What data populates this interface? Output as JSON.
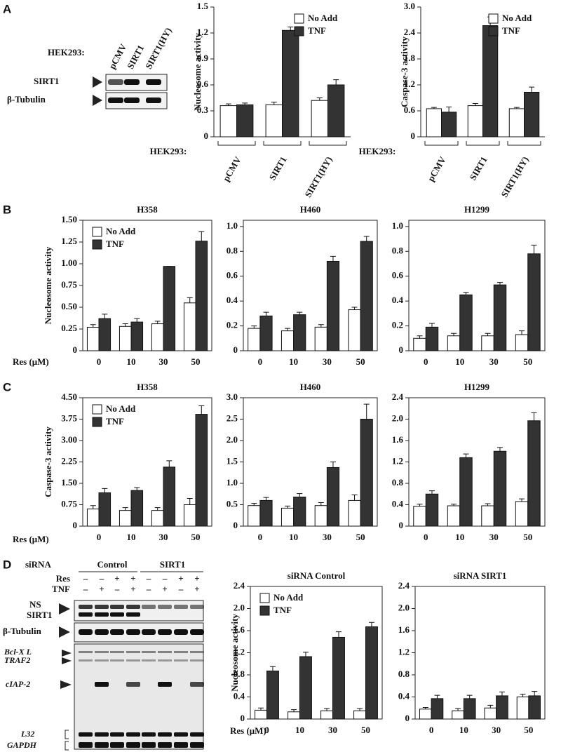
{
  "panel_labels": [
    "A",
    "B",
    "C",
    "D"
  ],
  "blot_a": {
    "cell_line": "HEK293:",
    "lanes": [
      "pCMV",
      "SIRT1",
      "SIRT1(HY)"
    ],
    "rows": [
      "SIRT1",
      "β-Tubulin"
    ]
  },
  "blot_d": {
    "sirna_label": "siRNA",
    "groups": [
      "Control",
      "SIRT1"
    ],
    "treatments": [
      {
        "name": "Res",
        "signs": [
          "–",
          "–",
          "+",
          "+",
          "–",
          "–",
          "+",
          "+"
        ]
      },
      {
        "name": "TNF",
        "signs": [
          "–",
          "+",
          "–",
          "+",
          "–",
          "+",
          "–",
          "+"
        ]
      }
    ],
    "rows": [
      "NS",
      "SIRT1",
      "β-Tubulin"
    ],
    "rna": [
      "Bcl-X L",
      "TRAF2",
      "cIAP-2",
      "L32",
      "GAPDH"
    ]
  },
  "chart_data": [
    {
      "type": "bar",
      "ylabel": "Nucleosome activity",
      "xlabel": "HEK293:",
      "frame": "axes",
      "legend": "top-right",
      "categories": [
        "pCMV",
        "SIRT1",
        "SIRT1(HY)"
      ],
      "ylim": [
        0,
        1.5
      ],
      "yticks": [
        0,
        0.3,
        0.6,
        0.9,
        1.2,
        1.5
      ],
      "series": [
        {
          "name": "No Add",
          "color": "#ffffff",
          "values": [
            0.36,
            0.37,
            0.42
          ],
          "errors": [
            0.02,
            0.03,
            0.03
          ]
        },
        {
          "name": "TNF",
          "color": "#333333",
          "values": [
            0.37,
            1.23,
            0.6
          ],
          "errors": [
            0.02,
            0.04,
            0.06
          ]
        }
      ]
    },
    {
      "type": "bar",
      "ylabel": "Caspase-3 activity",
      "xlabel": "HEK293:",
      "frame": "axes",
      "legend": "top-right",
      "categories": [
        "pCMV",
        "SIRT1",
        "SIRT1(HY)"
      ],
      "ylim": [
        0,
        3
      ],
      "yticks": [
        0,
        0.6,
        1.2,
        1.8,
        2.4,
        {
          "value": 3,
          "label": "3.0"
        }
      ],
      "series": [
        {
          "name": "No Add",
          "color": "#ffffff",
          "values": [
            0.65,
            0.72,
            0.65
          ],
          "errors": [
            0.03,
            0.05,
            0.03
          ]
        },
        {
          "name": "TNF",
          "color": "#333333",
          "values": [
            0.57,
            2.57,
            1.03
          ],
          "errors": [
            0.12,
            0.2,
            0.12
          ]
        }
      ]
    },
    {
      "type": "bar",
      "title": "H358",
      "ylabel": "Nucleosome activity",
      "xlabel": "Res (μM)",
      "frame": "box",
      "legend": "top-left",
      "categories": [
        "0",
        "10",
        "30",
        "50"
      ],
      "ylim": [
        0,
        1.5
      ],
      "yticks": [
        0,
        0.25,
        {
          "value": 0.5,
          "label": "0.50"
        },
        0.75,
        {
          "value": 1,
          "label": "1.00"
        },
        1.25,
        {
          "value": 1.5,
          "label": "1.50"
        }
      ],
      "series": [
        {
          "name": "No Add",
          "color": "#ffffff",
          "values": [
            0.27,
            0.28,
            0.31,
            0.55
          ],
          "errors": [
            0.03,
            0.03,
            0.03,
            0.06
          ]
        },
        {
          "name": "TNF",
          "color": "#333333",
          "values": [
            0.37,
            0.33,
            0.97,
            1.26
          ],
          "errors": [
            0.05,
            0.04,
            0,
            0.11
          ]
        }
      ]
    },
    {
      "type": "bar",
      "title": "H460",
      "frame": "box",
      "categories": [
        "0",
        "10",
        "30",
        "50"
      ],
      "ylim": [
        0,
        1.05
      ],
      "yticks": [
        0,
        0.2,
        0.4,
        0.6,
        0.8,
        {
          "value": 1,
          "label": "1.0"
        }
      ],
      "series": [
        {
          "color": "#ffffff",
          "values": [
            0.18,
            0.16,
            0.19,
            0.33
          ],
          "errors": [
            0.02,
            0.02,
            0.02,
            0.02
          ]
        },
        {
          "color": "#333333",
          "values": [
            0.28,
            0.29,
            0.72,
            0.88
          ],
          "errors": [
            0.03,
            0.02,
            0.04,
            0.04
          ]
        }
      ]
    },
    {
      "type": "bar",
      "title": "H1299",
      "frame": "box",
      "categories": [
        "0",
        "10",
        "30",
        "50"
      ],
      "ylim": [
        0,
        1.05
      ],
      "yticks": [
        0,
        0.2,
        0.4,
        0.6,
        0.8,
        {
          "value": 1,
          "label": "1.0"
        }
      ],
      "series": [
        {
          "color": "#ffffff",
          "values": [
            0.1,
            0.12,
            0.12,
            0.13
          ],
          "errors": [
            0.02,
            0.02,
            0.02,
            0.03
          ]
        },
        {
          "color": "#333333",
          "values": [
            0.19,
            0.45,
            0.53,
            0.78
          ],
          "errors": [
            0.03,
            0.02,
            0.02,
            0.07
          ]
        }
      ]
    },
    {
      "type": "bar",
      "title": "H358",
      "ylabel": "Caspase-3 activity",
      "xlabel": "Res (μM)",
      "frame": "box",
      "legend": "top-left",
      "categories": [
        "0",
        "10",
        "30",
        "50"
      ],
      "ylim": [
        0,
        4.5
      ],
      "yticks": [
        0,
        0.75,
        {
          "value": 1.5,
          "label": "1.50"
        },
        2.25,
        {
          "value": 3,
          "label": "3.00"
        },
        3.75,
        {
          "value": 4.5,
          "label": "4.50"
        }
      ],
      "series": [
        {
          "name": "No Add",
          "color": "#ffffff",
          "values": [
            0.6,
            0.55,
            0.55,
            0.75
          ],
          "errors": [
            0.12,
            0.1,
            0.1,
            0.22
          ]
        },
        {
          "name": "TNF",
          "color": "#333333",
          "values": [
            1.17,
            1.25,
            2.07,
            3.92
          ],
          "errors": [
            0.15,
            0.1,
            0.22,
            0.3
          ]
        }
      ]
    },
    {
      "type": "bar",
      "title": "H460",
      "frame": "box",
      "categories": [
        "0",
        "10",
        "30",
        "50"
      ],
      "ylim": [
        0,
        3
      ],
      "yticks": [
        0,
        0.5,
        {
          "value": 1,
          "label": "1.0"
        },
        1.5,
        {
          "value": 2,
          "label": "2.0"
        },
        2.5,
        {
          "value": 3,
          "label": "3.0"
        }
      ],
      "series": [
        {
          "color": "#ffffff",
          "values": [
            0.48,
            0.42,
            0.48,
            0.6
          ],
          "errors": [
            0.05,
            0.05,
            0.07,
            0.13
          ]
        },
        {
          "color": "#333333",
          "values": [
            0.6,
            0.68,
            1.37,
            2.5
          ],
          "errors": [
            0.07,
            0.08,
            0.13,
            0.35
          ]
        }
      ]
    },
    {
      "type": "bar",
      "title": "H1299",
      "frame": "box",
      "categories": [
        "0",
        "10",
        "30",
        "50"
      ],
      "ylim": [
        0,
        2.4
      ],
      "yticks": [
        0,
        0.4,
        0.8,
        1.2,
        1.6,
        {
          "value": 2,
          "label": "2.0"
        },
        2.4
      ],
      "series": [
        {
          "color": "#ffffff",
          "values": [
            0.37,
            0.38,
            0.38,
            0.46
          ],
          "errors": [
            0.04,
            0.03,
            0.04,
            0.05
          ]
        },
        {
          "color": "#333333",
          "values": [
            0.6,
            1.28,
            1.4,
            1.97
          ],
          "errors": [
            0.06,
            0.07,
            0.07,
            0.15
          ]
        }
      ]
    },
    {
      "type": "bar",
      "title": "siRNA Control",
      "ylabel": "Nucleosome activity",
      "xlabel": "Res (μM)",
      "frame": "box",
      "legend": "top-left",
      "categories": [
        "0",
        "10",
        "30",
        "50"
      ],
      "ylim": [
        0,
        2.4
      ],
      "yticks": [
        0,
        0.4,
        0.8,
        1.2,
        1.6,
        {
          "value": 2,
          "label": "2.0"
        },
        2.4
      ],
      "series": [
        {
          "name": "No Add",
          "color": "#ffffff",
          "values": [
            0.16,
            0.13,
            0.15,
            0.15
          ],
          "errors": [
            0.04,
            0.04,
            0.04,
            0.04
          ]
        },
        {
          "name": "TNF",
          "color": "#333333",
          "values": [
            0.87,
            1.13,
            1.48,
            1.67
          ],
          "errors": [
            0.08,
            0.08,
            0.1,
            0.08
          ]
        }
      ]
    },
    {
      "type": "bar",
      "title": "siRNA SIRT1",
      "frame": "box",
      "categories": [
        "0",
        "10",
        "30",
        "50"
      ],
      "ylim": [
        0,
        2.4
      ],
      "yticks": [
        0,
        0.4,
        0.8,
        1.2,
        1.6,
        {
          "value": 2,
          "label": "2.0"
        },
        2.4
      ],
      "series": [
        {
          "color": "#ffffff",
          "values": [
            0.18,
            0.15,
            0.2,
            0.4
          ],
          "errors": [
            0.03,
            0.04,
            0.05,
            0.05
          ]
        },
        {
          "color": "#333333",
          "values": [
            0.37,
            0.37,
            0.42,
            0.42
          ],
          "errors": [
            0.06,
            0.06,
            0.07,
            0.08
          ]
        }
      ]
    }
  ]
}
